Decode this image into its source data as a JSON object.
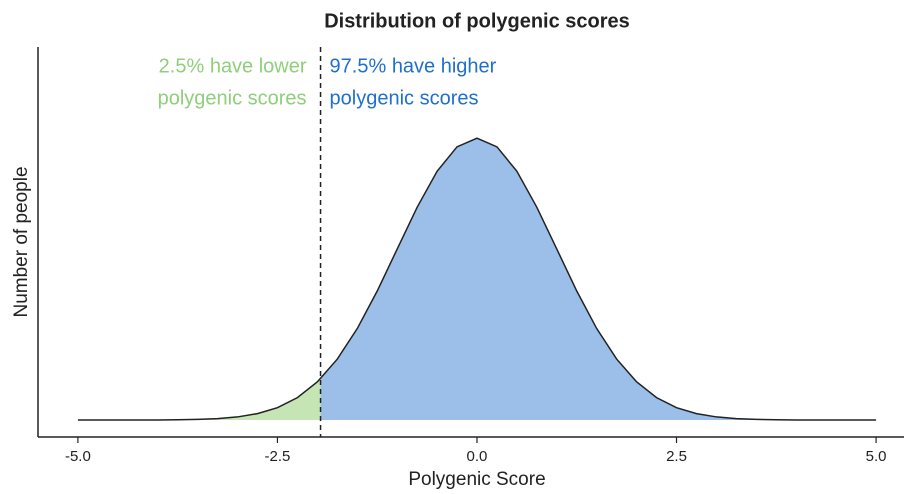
{
  "chart_data": {
    "type": "density",
    "title": "Distribution of polygenic scores",
    "xlabel": "Polygenic Score",
    "ylabel": "Number of people",
    "x": [
      -5,
      -4.75,
      -4.5,
      -4.25,
      -4,
      -3.75,
      -3.5,
      -3.25,
      -3,
      -2.75,
      -2.5,
      -2.25,
      -2,
      -1.75,
      -1.5,
      -1.25,
      -1,
      -0.75,
      -0.5,
      -0.25,
      0,
      0.25,
      0.5,
      0.75,
      1,
      1.25,
      1.5,
      1.75,
      2,
      2.25,
      2.5,
      2.75,
      3,
      3.25,
      3.5,
      3.75,
      4,
      4.25,
      4.5,
      4.75,
      5
    ],
    "values": [
      0,
      0,
      0,
      0.0001,
      0.0001,
      0.0004,
      0.0009,
      0.002,
      0.0044,
      0.0091,
      0.0175,
      0.0317,
      0.054,
      0.0863,
      0.1295,
      0.1826,
      0.242,
      0.3011,
      0.3521,
      0.3867,
      0.3989,
      0.3867,
      0.3521,
      0.3011,
      0.242,
      0.1826,
      0.1295,
      0.0863,
      0.054,
      0.0317,
      0.0175,
      0.0091,
      0.0044,
      0.002,
      0.0009,
      0.0004,
      0.0001,
      0.0001,
      0,
      0,
      0
    ],
    "threshold": -1.96,
    "lower_color": "#c5e5b4",
    "upper_color": "#9bbfe8",
    "line_color": "#222222",
    "annotations": [
      {
        "lines": [
          "2.5% have lower",
          "polygenic scores"
        ],
        "color": "#8fcf7a",
        "side": "left"
      },
      {
        "lines": [
          "97.5% have higher",
          "polygenic scores"
        ],
        "color": "#1f6fcf",
        "side": "right"
      }
    ],
    "xlim": [
      -5.5,
      5.35
    ],
    "ylim": [
      -0.024,
      0.528
    ],
    "xticks": [
      {
        "value": -5,
        "label": "-5.0"
      },
      {
        "value": -2.5,
        "label": "-2.5"
      },
      {
        "value": 0,
        "label": "0.0"
      },
      {
        "value": 2.5,
        "label": "2.5"
      },
      {
        "value": 5,
        "label": "5.0"
      }
    ]
  }
}
